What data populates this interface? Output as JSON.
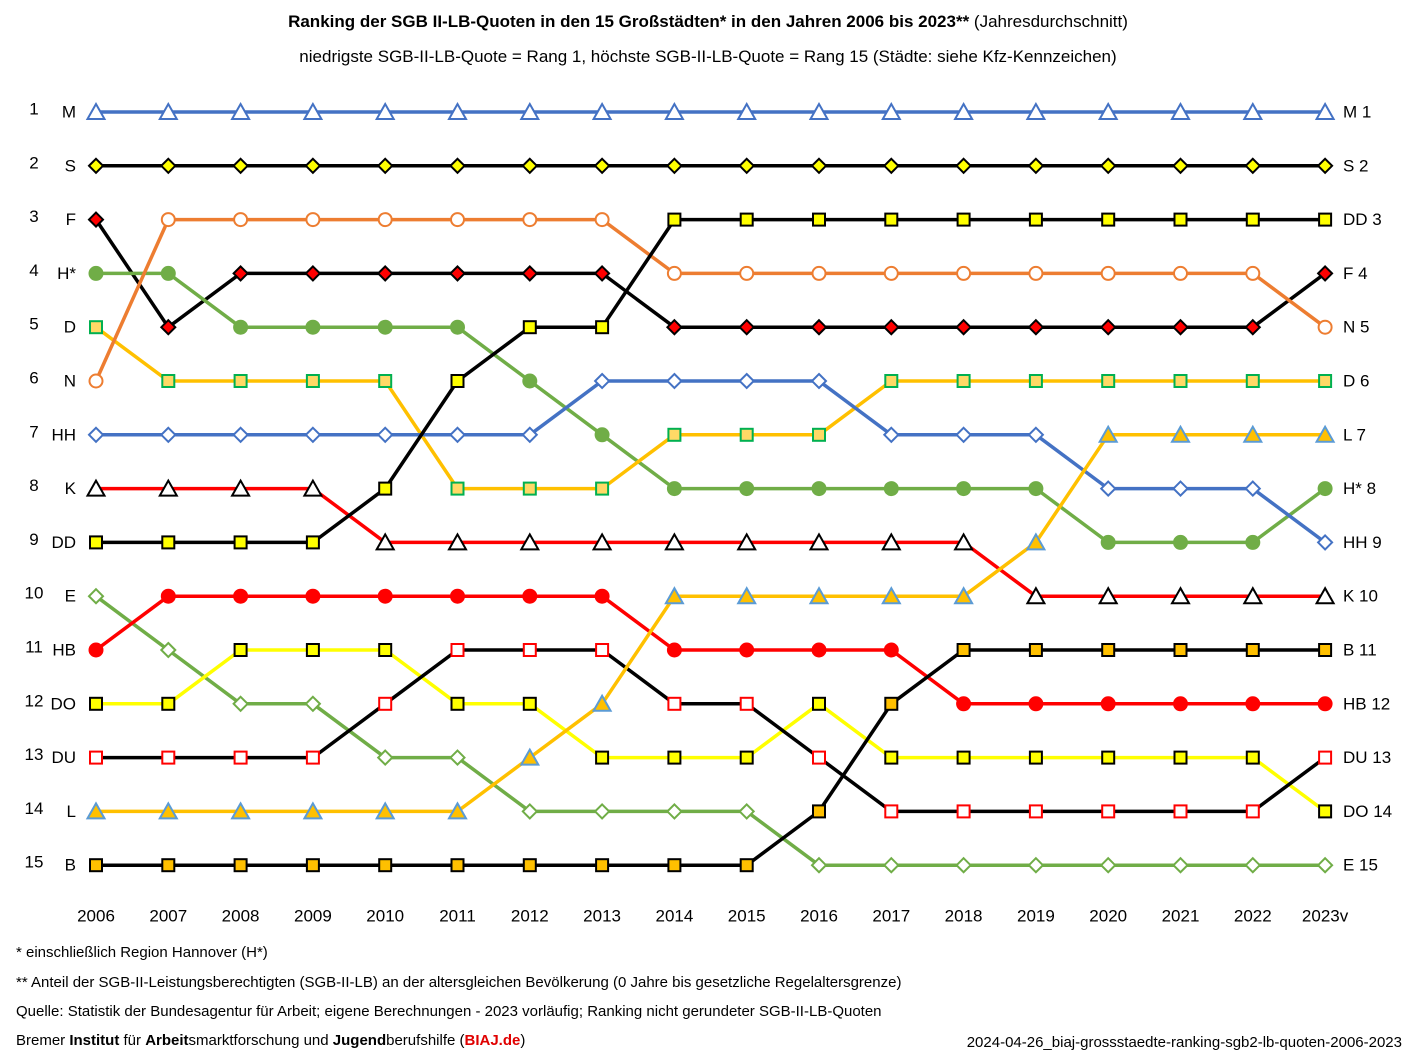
{
  "header": {
    "title_bold": "Ranking der SGB II-LB-Quoten in den 15 Großstädten* in den Jahren 2006 bis 2023**",
    "title_normal": " (Jahresdurchschnitt)",
    "subtitle": "niedrigste SGB-II-LB-Quote = Rang 1, höchste SGB-II-LB-Quote = Rang 15 (Städte: siehe Kfz-Kennzeichen)"
  },
  "footer": {
    "note1": "*   einschließlich Region Hannover  (H*)",
    "note2": "** Anteil der SGB-II-Leistungsberechtigten  (SGB-II-LB) an der altersgleichen  Bevölkerung  (0 Jahre bis gesetzliche  Regelaltersgrenze)",
    "note3": "Quelle:  Statistik der Bundesagentur  für Arbeit;  eigene Berechnungen  - 2023 vorläufig;  Ranking nicht gerundeter  SGB-II-LB-Quoten",
    "source_parts": [
      {
        "text": "Bremer ",
        "style": "normal"
      },
      {
        "text": "Institut",
        "style": "bold"
      },
      {
        "text": " für ",
        "style": "normal"
      },
      {
        "text": "Arbeit",
        "style": "bold"
      },
      {
        "text": "smarktforschung  und ",
        "style": "normal"
      },
      {
        "text": "Jugend",
        "style": "bold"
      },
      {
        "text": "berufshilfe  (",
        "style": "normal"
      },
      {
        "text": "BIAJ.de",
        "style": "red"
      },
      {
        "text": ")",
        "style": "normal"
      }
    ],
    "file_id": "2024-04-26_biaj-grossstaedte-ranking-sgb2-lb-quoten-2006-2023"
  },
  "chart_data": {
    "type": "line",
    "x": [
      "2006",
      "2007",
      "2008",
      "2009",
      "2010",
      "2011",
      "2012",
      "2013",
      "2014",
      "2015",
      "2016",
      "2017",
      "2018",
      "2019",
      "2020",
      "2021",
      "2022",
      "2023v"
    ],
    "ranks": [
      "1",
      "2",
      "3",
      "4",
      "5",
      "6",
      "7",
      "8",
      "9",
      "10",
      "11",
      "12",
      "13",
      "14",
      "15"
    ],
    "ylim": [
      1,
      15
    ],
    "y_inverted": true,
    "left_labels": [
      "M",
      "S",
      "F",
      "H*",
      "D",
      "N",
      "HH",
      "K",
      "DD",
      "E",
      "HB",
      "DO",
      "DU",
      "L",
      "B"
    ],
    "series": [
      {
        "name": "M",
        "end_label": "M 1",
        "line": "#4472c4",
        "marker": "triangle",
        "fill": "#ffffff",
        "stroke": "#4472c4",
        "values": [
          1,
          1,
          1,
          1,
          1,
          1,
          1,
          1,
          1,
          1,
          1,
          1,
          1,
          1,
          1,
          1,
          1,
          1
        ]
      },
      {
        "name": "S",
        "end_label": "S 2",
        "line": "#000000",
        "marker": "diamond",
        "fill": "#ffff00",
        "stroke": "#000000",
        "values": [
          2,
          2,
          2,
          2,
          2,
          2,
          2,
          2,
          2,
          2,
          2,
          2,
          2,
          2,
          2,
          2,
          2,
          2
        ]
      },
      {
        "name": "F",
        "end_label": "F 4",
        "line": "#000000",
        "marker": "diamond",
        "fill": "#ff0000",
        "stroke": "#000000",
        "values": [
          3,
          5,
          4,
          4,
          4,
          4,
          4,
          4,
          5,
          5,
          5,
          5,
          5,
          5,
          5,
          5,
          5,
          4
        ]
      },
      {
        "name": "H*",
        "end_label": "H* 8",
        "line": "#70ad47",
        "marker": "circle",
        "fill": "#70ad47",
        "stroke": "#70ad47",
        "values": [
          4,
          4,
          5,
          5,
          5,
          5,
          6,
          7,
          8,
          8,
          8,
          8,
          8,
          8,
          9,
          9,
          9,
          8
        ]
      },
      {
        "name": "D",
        "end_label": "D 6",
        "line": "#ffc000",
        "marker": "square",
        "fill": "#ffd966",
        "stroke": "#00b050",
        "values": [
          5,
          6,
          6,
          6,
          6,
          8,
          8,
          8,
          7,
          7,
          7,
          6,
          6,
          6,
          6,
          6,
          6,
          6
        ]
      },
      {
        "name": "N",
        "end_label": "N 5",
        "line": "#ed7d31",
        "marker": "circle",
        "fill": "#ffffff",
        "stroke": "#ed7d31",
        "values": [
          6,
          3,
          3,
          3,
          3,
          3,
          3,
          3,
          4,
          4,
          4,
          4,
          4,
          4,
          4,
          4,
          4,
          5
        ]
      },
      {
        "name": "HH",
        "end_label": "HH 9",
        "line": "#4472c4",
        "marker": "diamond",
        "fill": "#ffffff",
        "stroke": "#4472c4",
        "values": [
          7,
          7,
          7,
          7,
          7,
          7,
          7,
          6,
          6,
          6,
          6,
          7,
          7,
          7,
          8,
          8,
          8,
          9
        ]
      },
      {
        "name": "K",
        "end_label": "K 10",
        "line": "#ff0000",
        "marker": "triangle",
        "fill": "#ffffff",
        "stroke": "#000000",
        "values": [
          8,
          8,
          8,
          8,
          9,
          9,
          9,
          9,
          9,
          9,
          9,
          9,
          9,
          10,
          10,
          10,
          10,
          10
        ]
      },
      {
        "name": "DD",
        "end_label": "DD 3",
        "line": "#000000",
        "marker": "square",
        "fill": "#ffff00",
        "stroke": "#000000",
        "values": [
          9,
          9,
          9,
          9,
          8,
          6,
          5,
          5,
          3,
          3,
          3,
          3,
          3,
          3,
          3,
          3,
          3,
          3
        ]
      },
      {
        "name": "E",
        "end_label": "E 15",
        "line": "#70ad47",
        "marker": "diamond",
        "fill": "#ffffff",
        "stroke": "#70ad47",
        "values": [
          10,
          11,
          12,
          12,
          13,
          13,
          14,
          14,
          14,
          14,
          15,
          15,
          15,
          15,
          15,
          15,
          15,
          15
        ]
      },
      {
        "name": "HB",
        "end_label": "HB 12",
        "line": "#ff0000",
        "marker": "circle",
        "fill": "#ff0000",
        "stroke": "#ff0000",
        "values": [
          11,
          10,
          10,
          10,
          10,
          10,
          10,
          10,
          11,
          11,
          11,
          11,
          12,
          12,
          12,
          12,
          12,
          12
        ]
      },
      {
        "name": "DO",
        "end_label": "DO 14",
        "line": "#ffff00",
        "marker": "square",
        "fill": "#ffff00",
        "stroke": "#000000",
        "values": [
          12,
          12,
          11,
          11,
          11,
          12,
          12,
          13,
          13,
          13,
          12,
          13,
          13,
          13,
          13,
          13,
          13,
          14
        ]
      },
      {
        "name": "DU",
        "end_label": "DU 13",
        "line": "#000000",
        "marker": "square",
        "fill": "#ffffff",
        "stroke": "#ff0000",
        "values": [
          13,
          13,
          13,
          13,
          12,
          11,
          11,
          11,
          12,
          12,
          13,
          14,
          14,
          14,
          14,
          14,
          14,
          13
        ]
      },
      {
        "name": "L",
        "end_label": "L 7",
        "line": "#ffc000",
        "marker": "triangle",
        "fill": "#ffc000",
        "stroke": "#5b9bd5",
        "values": [
          14,
          14,
          14,
          14,
          14,
          14,
          13,
          12,
          10,
          10,
          10,
          10,
          10,
          9,
          7,
          7,
          7,
          7
        ]
      },
      {
        "name": "B",
        "end_label": "B 11",
        "line": "#000000",
        "marker": "square",
        "fill": "#ffc000",
        "stroke": "#000000",
        "values": [
          15,
          15,
          15,
          15,
          15,
          15,
          15,
          15,
          15,
          15,
          14,
          12,
          11,
          11,
          11,
          11,
          11,
          11
        ]
      }
    ]
  }
}
